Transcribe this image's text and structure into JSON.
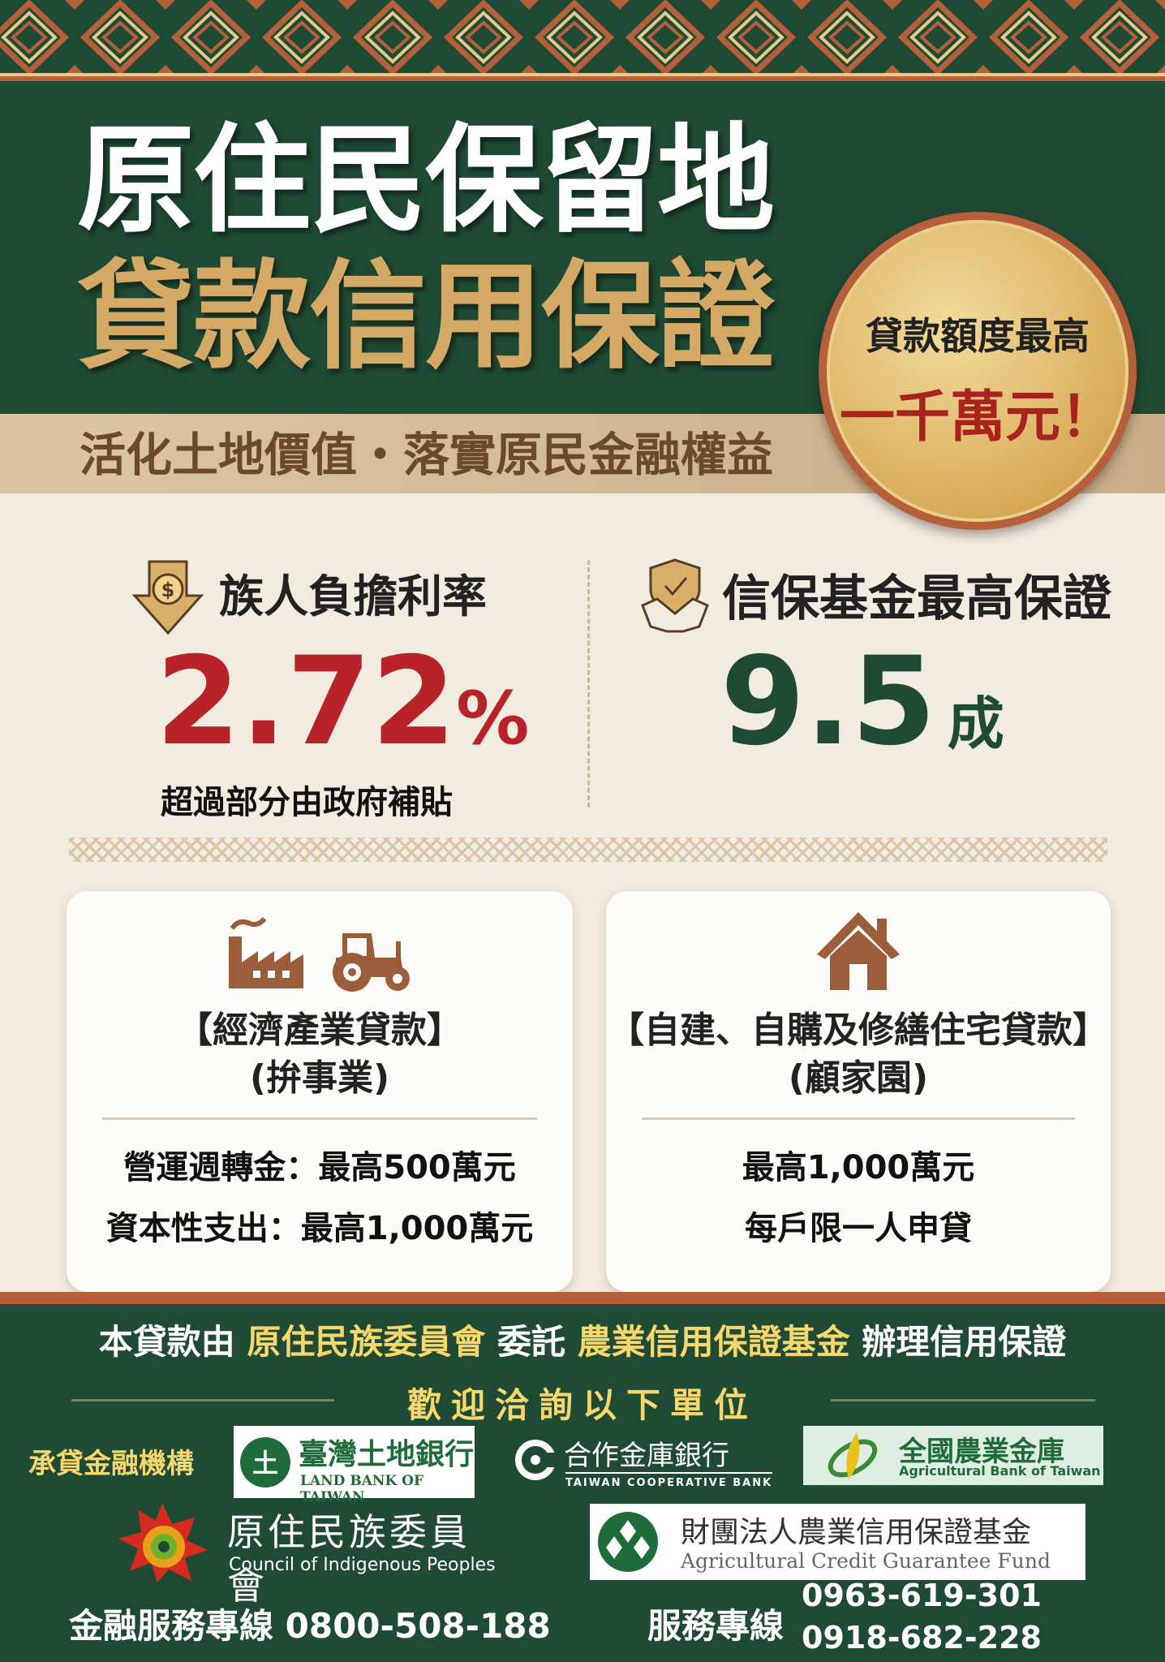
{
  "header": {
    "title_line1": "原住民保留地",
    "title_line2": "貸款信用保證",
    "subtitle": "活化土地價值・落實原民金融權益"
  },
  "seal": {
    "line1": "貸款額度最高",
    "line2": "一千萬元！"
  },
  "stats": {
    "rate": {
      "label": "族人負擔利率",
      "value": "2.72",
      "unit": "%",
      "note": "超過部分由政府補貼",
      "icon": "dollar-down-arrow-icon"
    },
    "guarantee": {
      "label": "信保基金最高保證",
      "value": "9.5",
      "unit": "成",
      "icon": "shield-handshake-icon"
    }
  },
  "cards": [
    {
      "title": "【經濟產業貸款】",
      "subtitle": "(拚事業)",
      "icons": [
        "factory-icon",
        "tractor-icon"
      ],
      "items": [
        "營運週轉金：最高500萬元",
        "資本性支出：最高1,000萬元"
      ]
    },
    {
      "title": "【自建、自購及修繕住宅貸款】",
      "subtitle": "(顧家園)",
      "icons": [
        "house-icon"
      ],
      "items": [
        "最高1,000萬元",
        "每戶限一人申貸"
      ]
    }
  ],
  "footer": {
    "statement": {
      "p1": "本貸款由",
      "org1": "原住民族委員會",
      "p2": "委託",
      "org2": "農業信用保證基金",
      "p3": "辦理信用保證"
    },
    "welcome": "歡迎洽詢以下單位",
    "lenders_label": "承貸金融機構",
    "logos": {
      "landbank": {
        "cn": "臺灣土地銀行",
        "en": "LAND BANK OF TAIWAN"
      },
      "coop": {
        "cn": "合作金庫銀行",
        "en": "TAIWAN COOPERATIVE BANK"
      },
      "agri": {
        "cn": "全國農業金庫",
        "en": "Agricultural Bank of Taiwan"
      },
      "cip": {
        "cn": "原住民族委員會",
        "en": "Council of Indigenous Peoples"
      },
      "acgf": {
        "cn": "財團法人農業信用保證基金",
        "en": "Agricultural Credit Guarantee Fund"
      }
    },
    "hotline_label": "金融服務專線",
    "hotline": "0800-508-188",
    "service_label": "服務專線",
    "service_phones": [
      "0963-619-301",
      "0918-682-228"
    ]
  },
  "colors": {
    "green": "#1f4a33",
    "gold": "#d4a965",
    "red": "#b8232a",
    "rust": "#b5603a",
    "cream": "#f2ebe0",
    "yellow": "#f5d76e"
  }
}
